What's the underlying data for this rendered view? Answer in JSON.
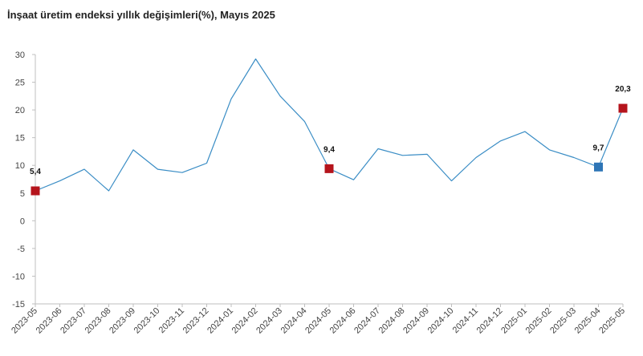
{
  "chart_data": {
    "type": "line",
    "title": "İnşaat üretim endeksi yıllık değişimleri(%), Mayıs 2025",
    "xlabel": "",
    "ylabel": "",
    "ylim": [
      -15,
      30
    ],
    "yticks": [
      30,
      25,
      20,
      15,
      10,
      5,
      0,
      -5,
      -10,
      -15
    ],
    "grid": false,
    "legend": "none",
    "categories": [
      "2023-05",
      "2023-06",
      "2023-07",
      "2023-08",
      "2023-09",
      "2023-10",
      "2023-11",
      "2023-12",
      "2024-01",
      "2024-02",
      "2024-03",
      "2024-04",
      "2024-05",
      "2024-06",
      "2024-07",
      "2024-08",
      "2024-09",
      "2024-10",
      "2024-11",
      "2024-12",
      "2025-01",
      "2025-02",
      "2025-03",
      "2025-04",
      "2025-05"
    ],
    "series": [
      {
        "values": [
          5.4,
          7.2,
          9.3,
          5.4,
          12.8,
          9.3,
          8.7,
          10.4,
          22.0,
          29.2,
          22.5,
          17.9,
          9.4,
          7.4,
          13.0,
          11.8,
          12.0,
          7.2,
          11.4,
          14.4,
          16.1,
          12.8,
          11.4,
          9.7,
          20.3
        ],
        "color": "#3a8dc5"
      }
    ],
    "highlighted_points": [
      {
        "category": "2023-05",
        "value": 5.4,
        "label": "5,4",
        "color": "#b5141c"
      },
      {
        "category": "2024-05",
        "value": 9.4,
        "label": "9,4",
        "color": "#b5141c"
      },
      {
        "category": "2025-04",
        "value": 9.7,
        "label": "9,7",
        "color": "#2e75b6"
      },
      {
        "category": "2025-05",
        "value": 20.3,
        "label": "20,3",
        "color": "#b5141c"
      }
    ],
    "axis_color": "#bfbfbf"
  }
}
